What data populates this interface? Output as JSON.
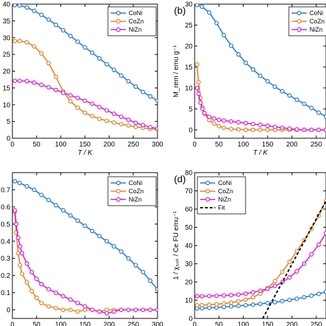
{
  "colors": {
    "CoNi": "#1f77d4",
    "CoZn": "#e5801e",
    "NiZn": "#d91ad6",
    "Fit": "#000000"
  },
  "chart_data": [
    {
      "id": "a",
      "type": "line",
      "panel_label": "",
      "xlabel": "T / K",
      "ylabel": "",
      "xlim": [
        0,
        300
      ],
      "ylim": [
        0,
        40
      ],
      "xticks": [
        0,
        50,
        100,
        150,
        200,
        250,
        300
      ],
      "yticks": [
        0,
        5,
        10,
        15,
        20,
        25,
        30,
        35,
        40
      ],
      "grid": false,
      "legend": "top-right",
      "series": [
        {
          "name": "CoNi",
          "color_key": "CoNi",
          "x": [
            5,
            15,
            30,
            45,
            60,
            75,
            90,
            105,
            120,
            135,
            150,
            165,
            180,
            195,
            210,
            225,
            240,
            255,
            270,
            285,
            300
          ],
          "y": [
            39.7,
            39.6,
            39.0,
            38.0,
            36.8,
            35.4,
            33.8,
            32.2,
            30.5,
            28.8,
            27.1,
            25.5,
            23.8,
            22.1,
            20.4,
            18.7,
            17.0,
            15.4,
            13.8,
            12.5,
            11.2
          ]
        },
        {
          "name": "CoZn",
          "color_key": "CoZn",
          "x": [
            5,
            15,
            30,
            45,
            60,
            75,
            90,
            105,
            120,
            135,
            150,
            165,
            180,
            195,
            210,
            225,
            240,
            255,
            270,
            285,
            300
          ],
          "y": [
            29.0,
            29.0,
            28.6,
            27.4,
            25.3,
            22.4,
            18.3,
            14.0,
            11.0,
            9.1,
            7.6,
            6.6,
            5.8,
            5.2,
            4.7,
            4.2,
            3.8,
            3.4,
            3.1,
            2.8,
            2.6
          ]
        },
        {
          "name": "NiZn",
          "color_key": "NiZn",
          "x": [
            5,
            15,
            30,
            45,
            60,
            75,
            90,
            105,
            120,
            135,
            150,
            165,
            180,
            195,
            210,
            225,
            240,
            255,
            270,
            285,
            300
          ],
          "y": [
            17.1,
            17.1,
            17.0,
            16.6,
            15.9,
            15.2,
            14.4,
            13.6,
            12.8,
            12.0,
            11.2,
            10.3,
            9.3,
            8.3,
            7.3,
            6.4,
            5.5,
            4.6,
            3.9,
            3.3,
            2.9
          ]
        }
      ]
    },
    {
      "id": "b",
      "type": "line",
      "panel_label": "(b)",
      "xlabel": "T / K",
      "ylabel": "M_rem / emu g⁻¹",
      "xlim": [
        0,
        270
      ],
      "ylim": [
        -2,
        30
      ],
      "xticks": [
        0,
        50,
        100,
        150,
        200,
        250
      ],
      "yticks": [
        0,
        5,
        10,
        15,
        20,
        25,
        30
      ],
      "grid": false,
      "legend": "top-right",
      "series": [
        {
          "name": "CoNi",
          "color_key": "CoNi",
          "x": [
            5,
            15,
            30,
            45,
            60,
            75,
            90,
            105,
            120,
            135,
            150,
            165,
            180,
            195,
            210,
            225,
            240,
            255,
            270
          ],
          "y": [
            29.8,
            29.4,
            28.0,
            25.5,
            22.6,
            20.1,
            18.0,
            16.0,
            14.4,
            12.9,
            11.6,
            10.3,
            9.2,
            8.2,
            7.2,
            6.2,
            5.2,
            4.1,
            3.2
          ]
        },
        {
          "name": "CoZn",
          "color_key": "CoZn",
          "x": [
            5,
            8,
            12,
            16,
            20,
            30,
            40,
            50,
            60,
            75,
            90,
            105,
            120,
            135,
            150,
            165,
            180,
            195,
            210,
            225,
            240,
            255,
            270
          ],
          "y": [
            15.6,
            11.4,
            7.6,
            5.4,
            3.9,
            2.3,
            1.5,
            0.9,
            0.5,
            0.2,
            0.1,
            0.0,
            0.0,
            0.0,
            0.0,
            0.0,
            0.0,
            0.0,
            0.0,
            0.0,
            0.0,
            0.0,
            0.0
          ]
        },
        {
          "name": "NiZn",
          "color_key": "NiZn",
          "x": [
            5,
            8,
            12,
            16,
            20,
            30,
            40,
            50,
            60,
            75,
            90,
            105,
            120,
            135,
            150,
            165,
            180,
            195,
            210,
            225,
            240,
            255,
            270
          ],
          "y": [
            10.0,
            8.6,
            6.5,
            5.0,
            4.0,
            3.1,
            2.7,
            2.4,
            2.2,
            2.0,
            1.8,
            1.6,
            1.4,
            1.2,
            1.0,
            0.7,
            0.5,
            0.3,
            0.1,
            0.0,
            0.0,
            0.0,
            0.0
          ]
        }
      ]
    },
    {
      "id": "c",
      "type": "line",
      "panel_label": "",
      "xlabel": "T / K",
      "ylabel": "",
      "xlim": [
        0,
        300
      ],
      "ylim": [
        -0.05,
        0.8
      ],
      "xticks": [
        0,
        50,
        100,
        150,
        200,
        250,
        300
      ],
      "yticks": [
        0,
        0.1,
        0.2,
        0.3,
        0.4,
        0.5,
        0.6,
        0.7
      ],
      "ytick_labels": [
        "0",
        "0.1",
        "0.2",
        "0.3",
        "0.4",
        "0.5",
        "0.6",
        "0.7"
      ],
      "grid": false,
      "legend": "top-right",
      "series": [
        {
          "name": "CoNi",
          "color_key": "CoNi",
          "x": [
            5,
            15,
            30,
            45,
            60,
            75,
            90,
            105,
            120,
            135,
            150,
            165,
            180,
            195,
            210,
            225,
            240,
            255,
            270,
            285,
            300
          ],
          "y": [
            0.75,
            0.74,
            0.72,
            0.7,
            0.67,
            0.64,
            0.61,
            0.58,
            0.55,
            0.52,
            0.49,
            0.46,
            0.43,
            0.4,
            0.37,
            0.34,
            0.3,
            0.26,
            0.22,
            0.17,
            0.12
          ]
        },
        {
          "name": "CoZn",
          "color_key": "CoZn",
          "x": [
            5,
            8,
            12,
            16,
            20,
            30,
            40,
            50,
            60,
            75,
            90,
            105,
            120,
            135,
            150,
            165,
            180,
            195,
            210,
            225,
            240,
            255,
            270,
            285,
            300
          ],
          "y": [
            0.57,
            0.45,
            0.33,
            0.26,
            0.21,
            0.16,
            0.11,
            0.07,
            0.04,
            0.02,
            0.01,
            0.0,
            0.0,
            -0.01,
            0.0,
            0.0,
            -0.01,
            0.0,
            0.0,
            0.0,
            0.0,
            0.0,
            0.0,
            0.0,
            0.0
          ]
        },
        {
          "name": "NiZn",
          "color_key": "NiZn",
          "x": [
            5,
            8,
            12,
            16,
            20,
            30,
            40,
            50,
            60,
            75,
            90,
            105,
            120,
            135,
            150,
            165,
            180,
            195,
            210,
            225,
            240,
            255,
            270,
            285,
            300
          ],
          "y": [
            0.58,
            0.5,
            0.42,
            0.37,
            0.33,
            0.27,
            0.22,
            0.18,
            0.15,
            0.12,
            0.1,
            0.08,
            0.06,
            0.04,
            0.02,
            0.0,
            -0.01,
            -0.02,
            -0.01,
            0.0,
            0.0,
            0.0,
            0.0,
            0.0,
            0.0
          ]
        }
      ]
    },
    {
      "id": "d",
      "type": "line",
      "panel_label": "(d)",
      "xlabel": "T / K",
      "ylabel": "1 / χ₅₀ₖ / Ce FU emu⁻¹",
      "xlim": [
        0,
        270
      ],
      "ylim": [
        0,
        80
      ],
      "xticks": [
        0,
        50,
        100,
        150,
        200,
        250
      ],
      "yticks": [
        0,
        10,
        20,
        30,
        40,
        50,
        60,
        70,
        80
      ],
      "grid": false,
      "legend": "top-left",
      "series": [
        {
          "name": "CoNi",
          "color_key": "CoNi",
          "x": [
            5,
            15,
            30,
            45,
            60,
            75,
            90,
            105,
            120,
            135,
            150,
            165,
            180,
            195,
            210,
            225,
            240,
            255,
            270
          ],
          "y": [
            5.5,
            5.6,
            5.8,
            6.0,
            6.3,
            6.6,
            6.9,
            7.2,
            7.6,
            8.0,
            8.4,
            8.9,
            9.5,
            10.1,
            10.8,
            11.6,
            12.5,
            13.5,
            14.6
          ]
        },
        {
          "name": "CoZn",
          "color_key": "CoZn",
          "x": [
            5,
            15,
            30,
            45,
            60,
            75,
            90,
            105,
            120,
            135,
            150,
            165,
            180,
            195,
            210,
            225,
            240,
            255,
            270
          ],
          "y": [
            7.2,
            7.3,
            7.5,
            7.8,
            8.2,
            8.7,
            9.4,
            10.3,
            11.6,
            13.6,
            16.6,
            20.5,
            25.5,
            31.0,
            36.9,
            43.0,
            49.2,
            56.4,
            64.5
          ]
        },
        {
          "name": "NiZn",
          "color_key": "NiZn",
          "x": [
            5,
            15,
            30,
            45,
            60,
            75,
            90,
            105,
            120,
            135,
            150,
            165,
            180,
            195,
            210,
            225,
            240,
            255,
            270
          ],
          "y": [
            12.2,
            12.2,
            12.3,
            12.4,
            12.6,
            12.8,
            13.1,
            13.6,
            14.3,
            15.2,
            16.3,
            17.8,
            19.8,
            22.5,
            25.8,
            30.0,
            35.2,
            40.5,
            46.8
          ]
        },
        {
          "name": "Fit",
          "color_key": "Fit",
          "style": "dashed",
          "x": [
            140,
            270
          ],
          "y": [
            0,
            64.5
          ]
        }
      ]
    }
  ]
}
